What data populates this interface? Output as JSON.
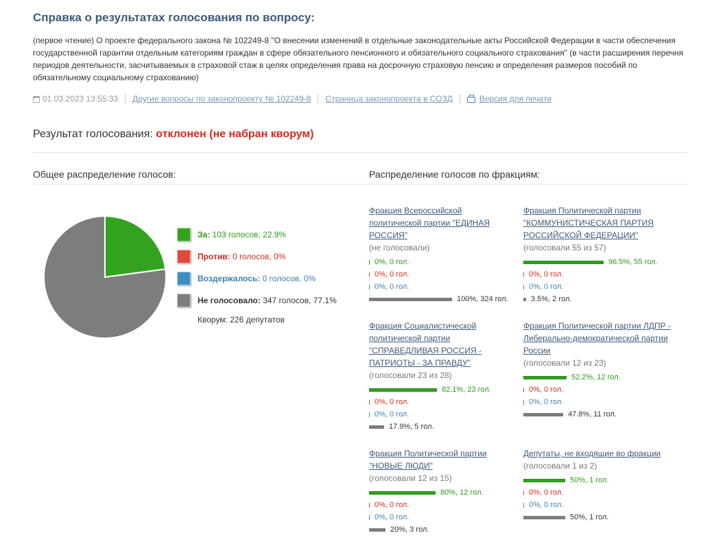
{
  "page": {
    "title": "Справка о результатах голосования по вопросу:",
    "description": "(первое чтение) О проекте федерального закона № 102249-8 \"О внесении изменений в отдельные законодательные акты Российской Федерации в части обеспечения государственной гарантии отдельным категориям граждан в сфере обязательного пенсионного и обязательного социального страхования\" (в части расширения перечня периодов деятельности, засчитываемых в страховой стаж в целях определения права на досрочную страховую пенсию и определения размеров пособий по обязательному социальному страхованию)"
  },
  "meta": {
    "date": "01.03.2023 13:55:33",
    "link_other_questions": "Другие вопросы по законопроекту № 102249-8",
    "link_sozd": "Страница законопроекта в СОЗД",
    "link_print": "Версия для печати"
  },
  "result": {
    "label": "Результат голосования:",
    "verdict": "отклонен (не набран кворум)"
  },
  "sections": {
    "overall": "Общее распределение голосов:",
    "by_faction": "Распределение голосов по фракциям:"
  },
  "colors": {
    "for": "#33a31f",
    "against": "#e04b3f",
    "abstain": "#3d8fc0",
    "none": "#7d7d7d"
  },
  "overall": {
    "legend": [
      {
        "key": "for",
        "label": "За:",
        "value": "103 голосов, 22.9%"
      },
      {
        "key": "against",
        "label": "Против:",
        "value": "0 голосов, 0%"
      },
      {
        "key": "abstain",
        "label": "Воздержалось:",
        "value": "0 голосов, 0%"
      },
      {
        "key": "none",
        "label": "Не голосовало:",
        "value": "347 голосов, 77.1%"
      }
    ],
    "pie_percent": {
      "for": 22.9,
      "against": 0,
      "abstain": 0,
      "none": 77.1
    },
    "quorum": "Кворум: 226 депутатов"
  },
  "factions": [
    {
      "name": "Фракция Всероссийской политической партии \"ЕДИНАЯ РОССИЯ\"",
      "subtitle": "(не голосовали)",
      "stats": [
        {
          "key": "for",
          "pct": 0,
          "text": "0%, 0 гол."
        },
        {
          "key": "against",
          "pct": 0,
          "text": "0%, 0 гол."
        },
        {
          "key": "abstain",
          "pct": 0,
          "text": "0%, 0 гол."
        },
        {
          "key": "none",
          "pct": 100,
          "text": "100%, 324 гол."
        }
      ]
    },
    {
      "name": "Фракция Политической партии \"КОММУНИСТИЧЕСКАЯ ПАРТИЯ РОССИЙСКОЙ ФЕДЕРАЦИИ\"",
      "subtitle": "(голосовали 55 из 57)",
      "stats": [
        {
          "key": "for",
          "pct": 96.5,
          "text": "96.5%, 55 гол."
        },
        {
          "key": "against",
          "pct": 0,
          "text": "0%, 0 гол."
        },
        {
          "key": "abstain",
          "pct": 0,
          "text": "0%, 0 гол."
        },
        {
          "key": "none",
          "pct": 3.5,
          "text": "3.5%, 2 гол."
        }
      ]
    },
    {
      "name": "Фракция Социалистической политической партии \"СПРАВЕДЛИВАЯ РОССИЯ - ПАТРИОТЫ - ЗА ПРАВДУ\"",
      "subtitle": "(голосовали 23 из 28)",
      "stats": [
        {
          "key": "for",
          "pct": 82.1,
          "text": "82.1%, 23 гол."
        },
        {
          "key": "against",
          "pct": 0,
          "text": "0%, 0 гол."
        },
        {
          "key": "abstain",
          "pct": 0,
          "text": "0%, 0 гол."
        },
        {
          "key": "none",
          "pct": 17.9,
          "text": "17.9%, 5 гол."
        }
      ]
    },
    {
      "name": "Фракция Политической партии ЛДПР - Либерально-демократической партии России",
      "subtitle": "(голосовали 12 из 23)",
      "stats": [
        {
          "key": "for",
          "pct": 52.2,
          "text": "52.2%, 12 гол."
        },
        {
          "key": "against",
          "pct": 0,
          "text": "0%, 0 гол."
        },
        {
          "key": "abstain",
          "pct": 0,
          "text": "0%, 0 гол."
        },
        {
          "key": "none",
          "pct": 47.8,
          "text": "47.8%, 11 гол."
        }
      ]
    },
    {
      "name": "Фракция Политической партии \"НОВЫЕ ЛЮДИ\"",
      "subtitle": "(голосовали 12 из 15)",
      "stats": [
        {
          "key": "for",
          "pct": 80,
          "text": "80%, 12 гол."
        },
        {
          "key": "against",
          "pct": 0,
          "text": "0%, 0 гол."
        },
        {
          "key": "abstain",
          "pct": 0,
          "text": "0%, 0 гол."
        },
        {
          "key": "none",
          "pct": 20,
          "text": "20%, 3 гол."
        }
      ]
    },
    {
      "name": "Депутаты, не входящие во фракции",
      "subtitle": "(голосовали 1 из 2)",
      "stats": [
        {
          "key": "for",
          "pct": 50,
          "text": "50%, 1 гол."
        },
        {
          "key": "against",
          "pct": 0,
          "text": "0%, 0 гол."
        },
        {
          "key": "abstain",
          "pct": 0,
          "text": "0%, 0 гол."
        },
        {
          "key": "none",
          "pct": 50,
          "text": "50%, 1 гол."
        }
      ]
    }
  ]
}
